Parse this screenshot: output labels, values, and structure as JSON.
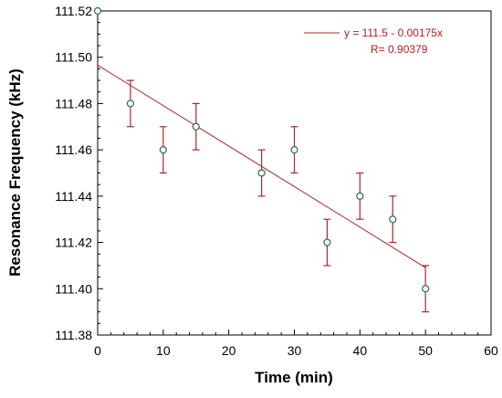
{
  "chart_data": {
    "type": "scatter",
    "title": "",
    "xlabel": "Time (min)",
    "ylabel": "Resonance Frequency (kHz)",
    "xlim": [
      0,
      60
    ],
    "ylim": [
      111.38,
      111.52
    ],
    "x_ticks": [
      0,
      10,
      20,
      30,
      40,
      50,
      60
    ],
    "y_ticks": [
      111.38,
      111.4,
      111.42,
      111.44,
      111.46,
      111.48,
      111.5,
      111.52
    ],
    "x_tick_labels": [
      "0",
      "10",
      "20",
      "30",
      "40",
      "50",
      "60"
    ],
    "y_tick_labels": [
      "111.38",
      "111.40",
      "111.42",
      "111.44",
      "111.46",
      "111.48",
      "111.50",
      "111.52"
    ],
    "grid": false,
    "legend_position": "top-right",
    "points": [
      {
        "x": 0,
        "y": 111.52,
        "err": null
      },
      {
        "x": 5,
        "y": 111.48,
        "err": 0.01
      },
      {
        "x": 10,
        "y": 111.46,
        "err": 0.01
      },
      {
        "x": 15,
        "y": 111.47,
        "err": 0.01
      },
      {
        "x": 25,
        "y": 111.45,
        "err": 0.01
      },
      {
        "x": 30,
        "y": 111.46,
        "err": 0.01
      },
      {
        "x": 35,
        "y": 111.42,
        "err": 0.01
      },
      {
        "x": 40,
        "y": 111.44,
        "err": 0.01
      },
      {
        "x": 45,
        "y": 111.43,
        "err": 0.01
      },
      {
        "x": 50,
        "y": 111.4,
        "err": 0.01
      }
    ],
    "fit": {
      "intercept": 111.4966,
      "slope": -0.00175,
      "x_range": [
        0,
        50
      ],
      "equation": "y = 111.5 - 0.00175x",
      "r_label": "R= 0.90379"
    },
    "colors": {
      "marker_stroke": "#2e6b4a",
      "error_bar": "#a82a2a",
      "fit_line": "#a82a2a",
      "axis": "#000000",
      "legend_text": "#b32020"
    }
  }
}
